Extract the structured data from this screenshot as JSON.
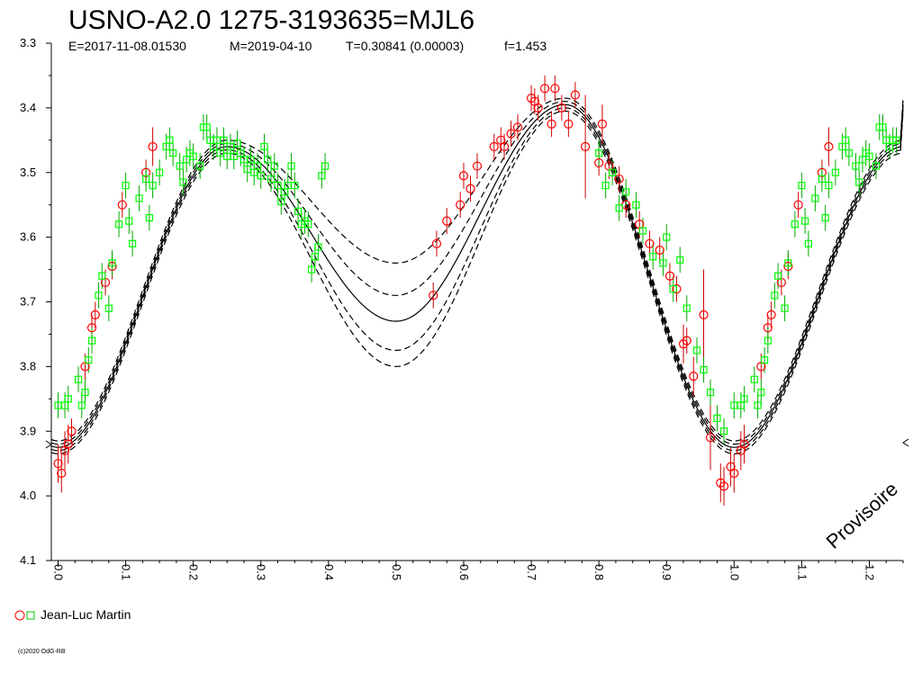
{
  "chart_data": {
    "type": "scatter",
    "title": "USNO-A2.0 1275-3193635=MJL6",
    "subtitle": {
      "epoch": "E=2017-11-08.01530",
      "measured": "M=2019-04-10",
      "period": "T=0.30841 (0.00003)",
      "fill": "f=1.453"
    },
    "watermark": "Provisoire",
    "copyright": "(c)2020 OdG-RB",
    "x_axis": {
      "range": [
        -0.01,
        1.25
      ],
      "ticks": [
        0.0,
        0.1,
        0.2,
        0.3,
        0.4,
        0.5,
        0.6,
        0.7,
        0.8,
        0.9,
        1.0,
        1.1,
        1.2
      ],
      "tick_labels": [
        "0.0",
        "0.1",
        "0.2",
        "0.3",
        "0.4",
        "0.5",
        "0.6",
        "0.7",
        "0.8",
        "0.9",
        "1.0",
        "1.1",
        "1.2"
      ]
    },
    "y_axis": {
      "range": [
        3.3,
        4.1
      ],
      "inverted": true,
      "ticks": [
        3.3,
        3.4,
        3.5,
        3.6,
        3.7,
        3.8,
        3.9,
        4.0,
        4.1
      ],
      "tick_labels": [
        "3.3",
        "3.4",
        "3.5",
        "3.6",
        "3.7",
        "3.8",
        "3.9",
        "4.0",
        "4.1"
      ]
    },
    "legend": {
      "label": "Jean-Luc Martin",
      "placement": "bottom-left"
    },
    "colors": {
      "series_circle": "#ff0000",
      "series_square": "#00ff00",
      "error_red": "#cc0000",
      "error_green": "#00aa00",
      "model": "#000000"
    },
    "series": [
      {
        "marker": "circle",
        "color": "#ff0000",
        "points": [
          [
            0.0,
            3.95,
            0.03
          ],
          [
            0.005,
            3.965,
            0.03
          ],
          [
            0.01,
            3.93,
            0.03
          ],
          [
            0.015,
            3.92,
            0.03
          ],
          [
            0.02,
            3.9,
            0.02
          ],
          [
            0.04,
            3.8,
            0.02
          ],
          [
            0.05,
            3.74,
            0.02
          ],
          [
            0.055,
            3.72,
            0.02
          ],
          [
            0.07,
            3.67,
            0.02
          ],
          [
            0.08,
            3.645,
            0.02
          ],
          [
            0.095,
            3.55,
            0.02
          ],
          [
            0.13,
            3.5,
            0.02
          ],
          [
            0.14,
            3.46,
            0.03
          ],
          [
            0.555,
            3.69,
            0.02
          ],
          [
            0.56,
            3.61,
            0.02
          ],
          [
            0.575,
            3.575,
            0.02
          ],
          [
            0.595,
            3.55,
            0.02
          ],
          [
            0.6,
            3.505,
            0.02
          ],
          [
            0.61,
            3.525,
            0.02
          ],
          [
            0.62,
            3.49,
            0.02
          ],
          [
            0.645,
            3.46,
            0.02
          ],
          [
            0.655,
            3.45,
            0.02
          ],
          [
            0.66,
            3.46,
            0.02
          ],
          [
            0.67,
            3.44,
            0.02
          ],
          [
            0.68,
            3.43,
            0.02
          ],
          [
            0.7,
            3.385,
            0.02
          ],
          [
            0.705,
            3.39,
            0.02
          ],
          [
            0.71,
            3.4,
            0.02
          ],
          [
            0.72,
            3.37,
            0.02
          ],
          [
            0.73,
            3.425,
            0.02
          ],
          [
            0.735,
            3.37,
            0.02
          ],
          [
            0.745,
            3.4,
            0.02
          ],
          [
            0.755,
            3.425,
            0.02
          ],
          [
            0.765,
            3.38,
            0.02
          ],
          [
            0.78,
            3.46,
            0.08
          ],
          [
            0.8,
            3.485,
            0.02
          ],
          [
            0.805,
            3.425,
            0.03
          ],
          [
            0.815,
            3.49,
            0.02
          ],
          [
            0.83,
            3.51,
            0.02
          ],
          [
            0.84,
            3.55,
            0.02
          ],
          [
            0.86,
            3.58,
            0.02
          ],
          [
            0.875,
            3.61,
            0.02
          ],
          [
            0.89,
            3.62,
            0.02
          ],
          [
            0.905,
            3.66,
            0.02
          ],
          [
            0.915,
            3.68,
            0.02
          ],
          [
            0.925,
            3.765,
            0.03
          ],
          [
            0.93,
            3.76,
            0.02
          ],
          [
            0.94,
            3.815,
            0.03
          ],
          [
            0.955,
            3.72,
            0.07
          ],
          [
            0.965,
            3.91,
            0.05
          ],
          [
            0.98,
            3.98,
            0.03
          ],
          [
            0.985,
            3.985,
            0.03
          ],
          [
            0.995,
            3.955,
            0.03
          ],
          [
            1.0,
            3.965,
            0.03
          ],
          [
            1.01,
            3.93,
            0.03
          ],
          [
            1.015,
            3.92,
            0.03
          ],
          [
            1.04,
            3.8,
            0.02
          ],
          [
            1.05,
            3.74,
            0.02
          ],
          [
            1.055,
            3.72,
            0.02
          ],
          [
            1.07,
            3.67,
            0.02
          ],
          [
            1.08,
            3.645,
            0.02
          ],
          [
            1.095,
            3.55,
            0.02
          ],
          [
            1.13,
            3.5,
            0.02
          ],
          [
            1.14,
            3.46,
            0.03
          ]
        ]
      },
      {
        "marker": "square",
        "color": "#00ff00",
        "points": [
          [
            0.0,
            3.86,
            0.02
          ],
          [
            0.01,
            3.86,
            0.02
          ],
          [
            0.015,
            3.85,
            0.02
          ],
          [
            0.03,
            3.82,
            0.02
          ],
          [
            0.035,
            3.86,
            0.02
          ],
          [
            0.04,
            3.84,
            0.02
          ],
          [
            0.045,
            3.79,
            0.02
          ],
          [
            0.05,
            3.76,
            0.02
          ],
          [
            0.06,
            3.69,
            0.02
          ],
          [
            0.065,
            3.66,
            0.02
          ],
          [
            0.075,
            3.71,
            0.02
          ],
          [
            0.08,
            3.64,
            0.02
          ],
          [
            0.09,
            3.58,
            0.02
          ],
          [
            0.1,
            3.52,
            0.02
          ],
          [
            0.105,
            3.575,
            0.02
          ],
          [
            0.11,
            3.61,
            0.02
          ],
          [
            0.12,
            3.54,
            0.02
          ],
          [
            0.13,
            3.51,
            0.02
          ],
          [
            0.135,
            3.57,
            0.02
          ],
          [
            0.14,
            3.52,
            0.02
          ],
          [
            0.15,
            3.5,
            0.02
          ],
          [
            0.16,
            3.46,
            0.02
          ],
          [
            0.165,
            3.45,
            0.02
          ],
          [
            0.17,
            3.47,
            0.02
          ],
          [
            0.18,
            3.49,
            0.02
          ],
          [
            0.185,
            3.515,
            0.02
          ],
          [
            0.19,
            3.48,
            0.02
          ],
          [
            0.195,
            3.47,
            0.02
          ],
          [
            0.2,
            3.475,
            0.02
          ],
          [
            0.21,
            3.49,
            0.02
          ],
          [
            0.215,
            3.43,
            0.02
          ],
          [
            0.22,
            3.43,
            0.02
          ],
          [
            0.225,
            3.45,
            0.02
          ],
          [
            0.23,
            3.46,
            0.02
          ],
          [
            0.235,
            3.45,
            0.02
          ],
          [
            0.24,
            3.47,
            0.02
          ],
          [
            0.245,
            3.45,
            0.02
          ],
          [
            0.25,
            3.475,
            0.02
          ],
          [
            0.255,
            3.46,
            0.02
          ],
          [
            0.26,
            3.475,
            0.02
          ],
          [
            0.265,
            3.455,
            0.02
          ],
          [
            0.27,
            3.47,
            0.02
          ],
          [
            0.275,
            3.48,
            0.02
          ],
          [
            0.28,
            3.495,
            0.02
          ],
          [
            0.285,
            3.48,
            0.02
          ],
          [
            0.29,
            3.5,
            0.02
          ],
          [
            0.295,
            3.49,
            0.02
          ],
          [
            0.3,
            3.505,
            0.02
          ],
          [
            0.305,
            3.46,
            0.02
          ],
          [
            0.31,
            3.48,
            0.02
          ],
          [
            0.315,
            3.51,
            0.02
          ],
          [
            0.32,
            3.49,
            0.02
          ],
          [
            0.325,
            3.52,
            0.02
          ],
          [
            0.33,
            3.545,
            0.02
          ],
          [
            0.335,
            3.53,
            0.02
          ],
          [
            0.34,
            3.52,
            0.02
          ],
          [
            0.345,
            3.49,
            0.02
          ],
          [
            0.35,
            3.52,
            0.02
          ],
          [
            0.355,
            3.56,
            0.02
          ],
          [
            0.36,
            3.58,
            0.02
          ],
          [
            0.365,
            3.575,
            0.02
          ],
          [
            0.37,
            3.58,
            0.02
          ],
          [
            0.375,
            3.65,
            0.02
          ],
          [
            0.38,
            3.63,
            0.02
          ],
          [
            0.385,
            3.615,
            0.02
          ],
          [
            0.39,
            3.505,
            0.02
          ],
          [
            0.395,
            3.49,
            0.02
          ],
          [
            0.8,
            3.47,
            0.02
          ],
          [
            0.81,
            3.52,
            0.02
          ],
          [
            0.82,
            3.5,
            0.02
          ],
          [
            0.83,
            3.555,
            0.02
          ],
          [
            0.84,
            3.53,
            0.02
          ],
          [
            0.855,
            3.55,
            0.02
          ],
          [
            0.865,
            3.59,
            0.02
          ],
          [
            0.88,
            3.63,
            0.02
          ],
          [
            0.895,
            3.64,
            0.02
          ],
          [
            0.9,
            3.6,
            0.02
          ],
          [
            0.91,
            3.68,
            0.02
          ],
          [
            0.92,
            3.635,
            0.02
          ],
          [
            0.93,
            3.71,
            0.02
          ],
          [
            0.945,
            3.775,
            0.02
          ],
          [
            0.955,
            3.805,
            0.02
          ],
          [
            0.965,
            3.84,
            0.02
          ],
          [
            0.975,
            3.88,
            0.02
          ],
          [
            0.985,
            3.9,
            0.02
          ],
          [
            1.0,
            3.86,
            0.02
          ],
          [
            1.01,
            3.86,
            0.02
          ],
          [
            1.015,
            3.85,
            0.02
          ],
          [
            1.03,
            3.82,
            0.02
          ],
          [
            1.035,
            3.86,
            0.02
          ],
          [
            1.04,
            3.84,
            0.02
          ],
          [
            1.045,
            3.79,
            0.02
          ],
          [
            1.05,
            3.76,
            0.02
          ],
          [
            1.06,
            3.69,
            0.02
          ],
          [
            1.065,
            3.66,
            0.02
          ],
          [
            1.075,
            3.71,
            0.02
          ],
          [
            1.08,
            3.64,
            0.02
          ],
          [
            1.09,
            3.58,
            0.02
          ],
          [
            1.1,
            3.52,
            0.02
          ],
          [
            1.105,
            3.575,
            0.02
          ],
          [
            1.11,
            3.61,
            0.02
          ],
          [
            1.12,
            3.54,
            0.02
          ],
          [
            1.13,
            3.51,
            0.02
          ],
          [
            1.135,
            3.57,
            0.02
          ],
          [
            1.14,
            3.52,
            0.02
          ],
          [
            1.15,
            3.5,
            0.02
          ],
          [
            1.16,
            3.46,
            0.02
          ],
          [
            1.165,
            3.45,
            0.02
          ],
          [
            1.17,
            3.47,
            0.02
          ],
          [
            1.18,
            3.49,
            0.02
          ],
          [
            1.185,
            3.515,
            0.02
          ],
          [
            1.19,
            3.48,
            0.02
          ],
          [
            1.195,
            3.47,
            0.02
          ],
          [
            1.2,
            3.475,
            0.02
          ],
          [
            1.21,
            3.49,
            0.02
          ],
          [
            1.215,
            3.43,
            0.02
          ],
          [
            1.22,
            3.43,
            0.02
          ],
          [
            1.225,
            3.45,
            0.02
          ],
          [
            1.23,
            3.46,
            0.02
          ],
          [
            1.235,
            3.45,
            0.02
          ],
          [
            1.24,
            3.45,
            0.02
          ]
        ]
      }
    ],
    "model": {
      "max1": 3.46,
      "max2": 3.395,
      "min_primary": 3.925,
      "min_secondary_curves": [
        3.64,
        3.69,
        3.73,
        3.775,
        3.8
      ],
      "dashed": [
        true,
        true,
        false,
        true,
        true
      ]
    }
  }
}
